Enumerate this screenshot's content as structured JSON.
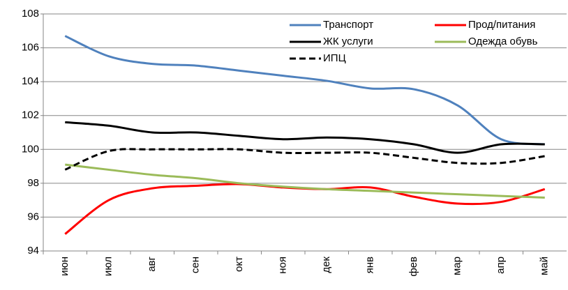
{
  "chart_data": {
    "type": "line",
    "categories": [
      "июн",
      "июл",
      "авг",
      "сен",
      "окт",
      "ноя",
      "дек",
      "янв",
      "фев",
      "мар",
      "апр",
      "май"
    ],
    "series": [
      {
        "name": "Транспорт",
        "color": "#4f81bd",
        "dashed": false,
        "values": [
          106.7,
          105.5,
          105.05,
          104.95,
          104.65,
          104.35,
          104.05,
          103.6,
          103.55,
          102.6,
          100.6,
          100.3
        ]
      },
      {
        "name": "Прод/питания",
        "color": "#ff0000",
        "dashed": false,
        "values": [
          95.0,
          97.0,
          97.7,
          97.85,
          97.95,
          97.75,
          97.65,
          97.75,
          97.2,
          96.8,
          96.9,
          97.65
        ]
      },
      {
        "name": "ЖК услуги",
        "color": "#000000",
        "dashed": false,
        "values": [
          101.6,
          101.4,
          101.0,
          101.0,
          100.8,
          100.6,
          100.7,
          100.6,
          100.3,
          99.8,
          100.3,
          100.3
        ]
      },
      {
        "name": "Одежда обувь",
        "color": "#9bbb59",
        "dashed": false,
        "values": [
          99.1,
          98.8,
          98.5,
          98.3,
          98.0,
          97.8,
          97.65,
          97.55,
          97.45,
          97.35,
          97.25,
          97.15
        ]
      },
      {
        "name": "ИПЦ",
        "color": "#000000",
        "dashed": true,
        "values": [
          98.8,
          99.9,
          100.0,
          100.0,
          100.0,
          99.8,
          99.8,
          99.8,
          99.5,
          99.2,
          99.2,
          99.6
        ]
      }
    ],
    "ylim": [
      94,
      108
    ],
    "yticks": [
      94,
      96,
      98,
      100,
      102,
      104,
      106,
      108
    ],
    "grid": true,
    "legend": "upper right"
  }
}
